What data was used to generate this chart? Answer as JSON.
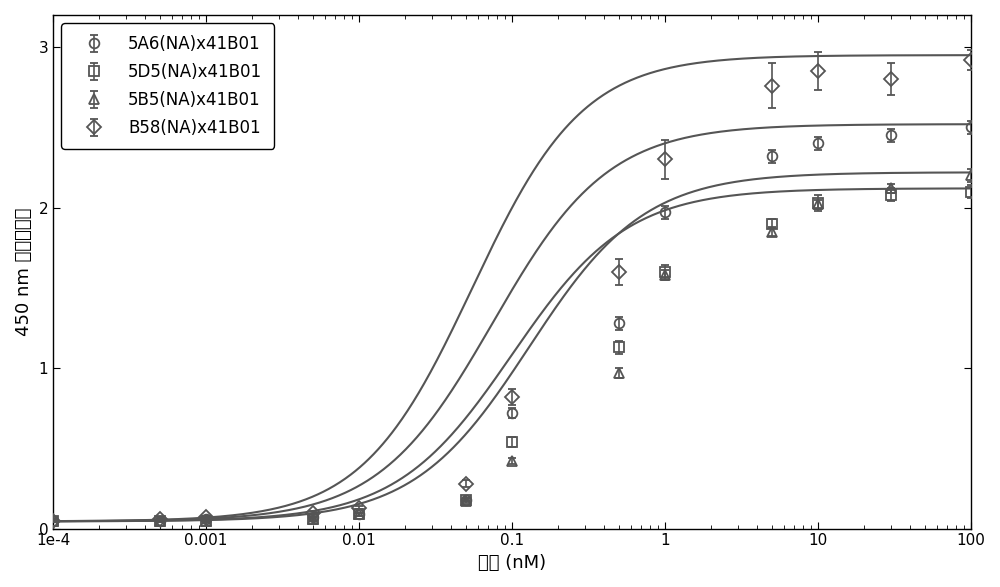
{
  "title": "",
  "xlabel": "浓度 (nM)",
  "ylabel": "450 nm 处的吸光度",
  "xlim_log": [
    -4,
    2
  ],
  "ylim": [
    0,
    3.2
  ],
  "yticks": [
    0,
    1,
    2,
    3
  ],
  "background_color": "#ffffff",
  "series": [
    {
      "label": "5A6(NA)x41B01",
      "marker": "o",
      "color": "#555555",
      "xdata": [
        0.0001,
        0.0005,
        0.001,
        0.005,
        0.01,
        0.05,
        0.1,
        0.5,
        1.0,
        5.0,
        10.0,
        30.0,
        100.0
      ],
      "ydata": [
        0.05,
        0.05,
        0.06,
        0.07,
        0.09,
        0.18,
        0.72,
        1.28,
        1.97,
        2.32,
        2.4,
        2.45,
        2.5
      ],
      "yerr": [
        0.01,
        0.01,
        0.01,
        0.01,
        0.01,
        0.01,
        0.03,
        0.04,
        0.04,
        0.04,
        0.04,
        0.04,
        0.04
      ],
      "ec50": 0.075,
      "top": 2.52,
      "bottom": 0.045,
      "hillslope": 1.15
    },
    {
      "label": "5D5(NA)x41B01",
      "marker": "s",
      "color": "#555555",
      "xdata": [
        0.0001,
        0.0005,
        0.001,
        0.005,
        0.01,
        0.05,
        0.1,
        0.5,
        1.0,
        5.0,
        10.0,
        30.0,
        100.0
      ],
      "ydata": [
        0.05,
        0.05,
        0.05,
        0.06,
        0.09,
        0.18,
        0.54,
        1.13,
        1.6,
        1.9,
        2.03,
        2.08,
        2.1
      ],
      "yerr": [
        0.01,
        0.01,
        0.01,
        0.01,
        0.01,
        0.01,
        0.03,
        0.04,
        0.04,
        0.03,
        0.05,
        0.04,
        0.04
      ],
      "ec50": 0.1,
      "top": 2.12,
      "bottom": 0.045,
      "hillslope": 1.15
    },
    {
      "label": "5B5(NA)x41B01",
      "marker": "^",
      "color": "#555555",
      "xdata": [
        0.0001,
        0.0005,
        0.001,
        0.005,
        0.01,
        0.05,
        0.1,
        0.5,
        1.0,
        5.0,
        10.0,
        30.0,
        100.0
      ],
      "ydata": [
        0.05,
        0.05,
        0.05,
        0.06,
        0.09,
        0.17,
        0.42,
        0.97,
        1.58,
        1.85,
        2.02,
        2.12,
        2.2
      ],
      "yerr": [
        0.01,
        0.01,
        0.01,
        0.01,
        0.01,
        0.01,
        0.02,
        0.03,
        0.03,
        0.03,
        0.03,
        0.03,
        0.04
      ],
      "ec50": 0.13,
      "top": 2.22,
      "bottom": 0.045,
      "hillslope": 1.15
    },
    {
      "label": "B58(NA)x41B01",
      "marker": "D",
      "color": "#555555",
      "xdata": [
        0.0001,
        0.0005,
        0.001,
        0.005,
        0.01,
        0.05,
        0.1,
        0.5,
        1.0,
        5.0,
        10.0,
        30.0,
        100.0
      ],
      "ydata": [
        0.05,
        0.06,
        0.07,
        0.1,
        0.13,
        0.28,
        0.82,
        1.6,
        2.3,
        2.76,
        2.85,
        2.8,
        2.92
      ],
      "yerr": [
        0.01,
        0.01,
        0.01,
        0.01,
        0.01,
        0.02,
        0.05,
        0.08,
        0.12,
        0.14,
        0.12,
        0.1,
        0.06
      ],
      "ec50": 0.055,
      "top": 2.95,
      "bottom": 0.045,
      "hillslope": 1.2
    }
  ],
  "marker_size": 7,
  "line_width": 1.5,
  "font_size_label": 13,
  "font_size_tick": 11,
  "font_size_legend": 12
}
